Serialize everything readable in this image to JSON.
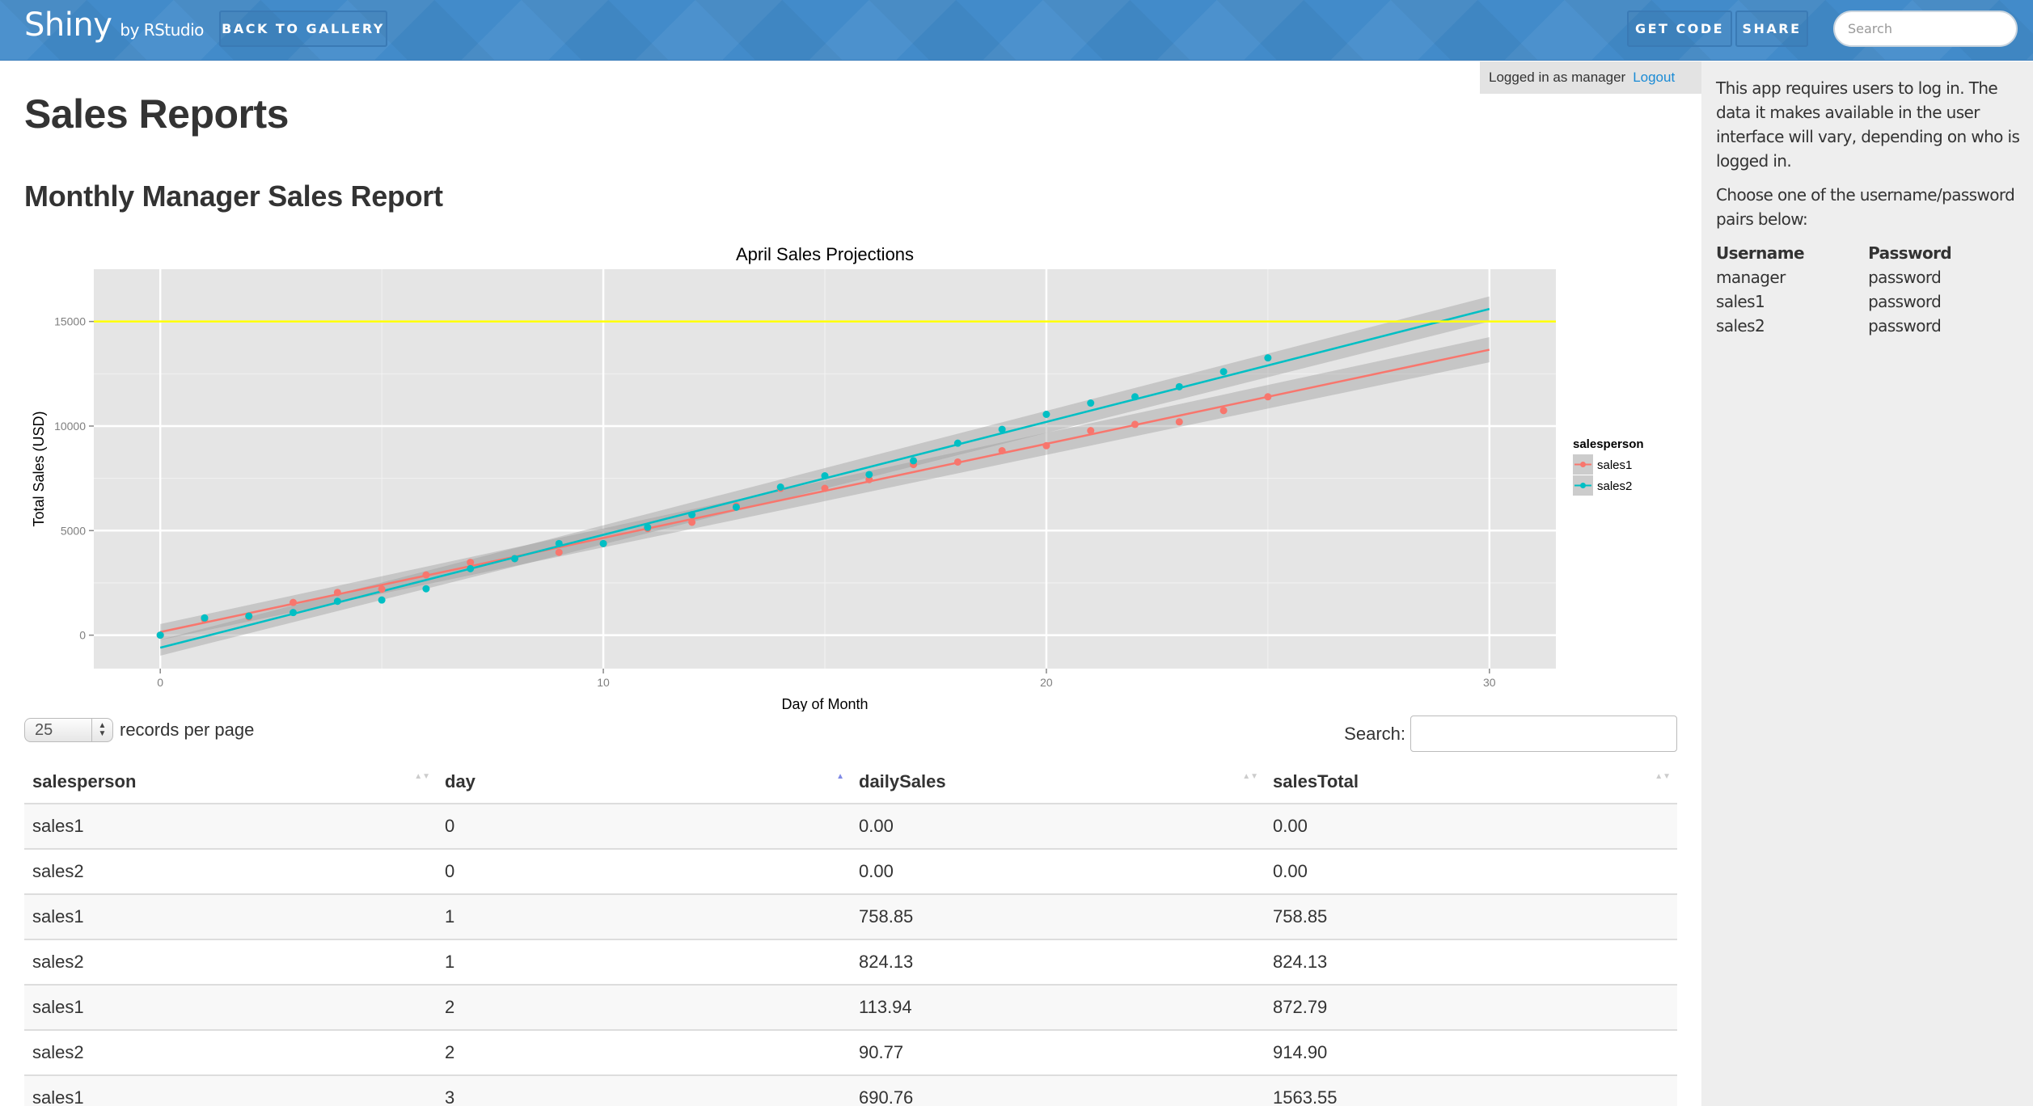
{
  "topbar": {
    "brand": "Shiny",
    "brand_sub": "by RStudio",
    "back_to_gallery": "BACK TO GALLERY",
    "get_code": "GET CODE",
    "share": "SHARE",
    "search_placeholder": "Search",
    "search_value": ""
  },
  "login": {
    "status": "Logged in as manager",
    "logout": "Logout"
  },
  "main": {
    "page_title": "Sales Reports",
    "report_title": "Monthly Manager Sales Report"
  },
  "sidebar": {
    "intro": "This app requires users to log in. The data it makes available in the user interface will vary, depending on who is logged in.",
    "instructions": "Choose one of the username/password pairs below:",
    "headers": [
      "Username",
      "Password"
    ],
    "credentials": [
      {
        "username": "manager",
        "password": "password"
      },
      {
        "username": "sales1",
        "password": "password"
      },
      {
        "username": "sales2",
        "password": "password"
      }
    ]
  },
  "table_controls": {
    "page_length": "25",
    "page_length_label": "records per page",
    "search_label": "Search:",
    "search_value": ""
  },
  "table": {
    "columns": [
      "salesperson",
      "day",
      "dailySales",
      "salesTotal"
    ],
    "sorted_column": "day",
    "sort_direction": "asc",
    "rows": [
      [
        "sales1",
        "0",
        "0.00",
        "0.00"
      ],
      [
        "sales2",
        "0",
        "0.00",
        "0.00"
      ],
      [
        "sales1",
        "1",
        "758.85",
        "758.85"
      ],
      [
        "sales2",
        "1",
        "824.13",
        "824.13"
      ],
      [
        "sales1",
        "2",
        "113.94",
        "872.79"
      ],
      [
        "sales2",
        "2",
        "90.77",
        "914.90"
      ],
      [
        "sales1",
        "3",
        "690.76",
        "1563.55"
      ]
    ]
  },
  "colors": {
    "topbar": "#428bca",
    "sidebar_bg": "#eeeeee",
    "sales1": "#f8766d",
    "sales2": "#00bfc4",
    "target_line": "#ffff00",
    "plot_bg": "#e5e5e5",
    "logout_link": "#1a8bd5",
    "sort_active": "#7f89e6"
  },
  "chart_data": {
    "type": "scatter",
    "title": "April Sales Projections",
    "xlabel": "Day of Month",
    "ylabel": "Total Sales (USD)",
    "xlim": [
      -1.5,
      31.5
    ],
    "ylim": [
      -1600,
      17500
    ],
    "xticks": [
      0,
      10,
      20,
      30
    ],
    "yticks": [
      0,
      5000,
      10000,
      15000
    ],
    "grid": true,
    "legend": {
      "title": "salesperson",
      "position": "right",
      "entries": [
        "sales1",
        "sales2"
      ]
    },
    "reference_line": {
      "y": 15000,
      "color": "#ffff00"
    },
    "x": [
      0,
      1,
      2,
      3,
      4,
      5,
      6,
      7,
      8,
      9,
      10,
      11,
      12,
      13,
      14,
      15,
      16,
      17,
      18,
      19,
      20,
      21,
      22,
      23,
      24,
      25
    ],
    "series": [
      {
        "name": "sales1",
        "color": "#f8766d",
        "values": [
          0,
          759,
          873,
          1564,
          2040,
          2200,
          2880,
          3480,
          3660,
          3960,
          4380,
          5100,
          5400,
          6180,
          7020,
          7020,
          7440,
          8160,
          8280,
          8820,
          9060,
          9780,
          10080,
          10200,
          10740,
          11400
        ],
        "trend": {
          "x": [
            0,
            30
          ],
          "y": [
            150,
            13650
          ]
        }
      },
      {
        "name": "sales2",
        "color": "#00bfc4",
        "values": [
          0,
          824,
          915,
          1080,
          1620,
          1680,
          2220,
          3180,
          3660,
          4380,
          4380,
          5160,
          5760,
          6120,
          7080,
          7620,
          7680,
          8340,
          9180,
          9840,
          10560,
          11100,
          11400,
          11880,
          12600,
          13260
        ],
        "trend": {
          "x": [
            0,
            30
          ],
          "y": [
            -600,
            15600
          ]
        }
      }
    ]
  }
}
